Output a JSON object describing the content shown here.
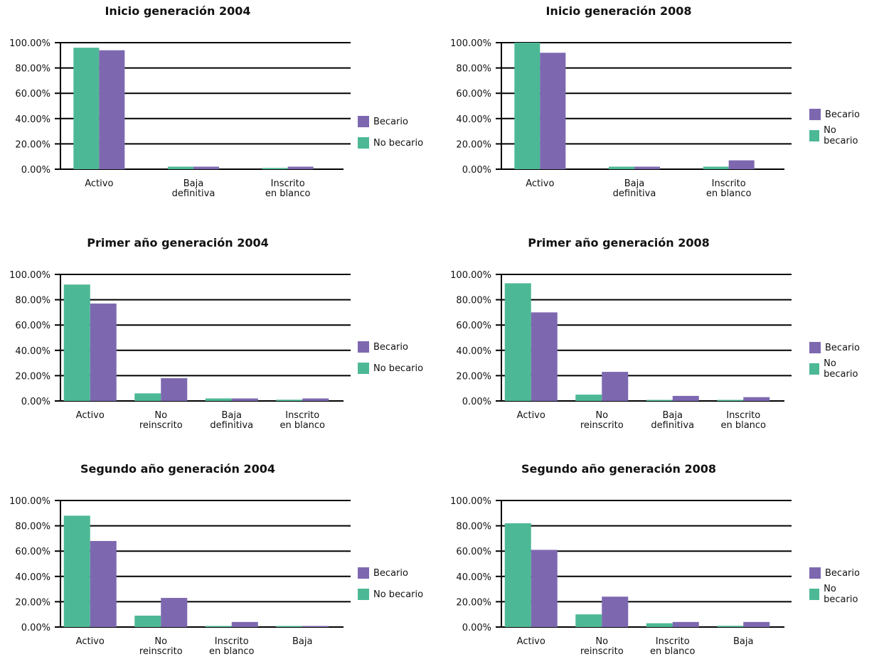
{
  "colors": {
    "becario": "#7d68b0",
    "no_becario": "#4db896"
  },
  "legend": {
    "becario": "Becario",
    "no_becario": "No becario"
  },
  "chart_data": [
    {
      "type": "bar",
      "title": "Inicio generación 2004",
      "ylim": [
        0,
        100
      ],
      "yticks": [
        "0.00%",
        "20.00%",
        "40.00%",
        "60.00%",
        "80.00%",
        "100.00%"
      ],
      "categories": [
        [
          "Activo"
        ],
        [
          "Baja",
          "definitiva"
        ],
        [
          "Inscrito",
          "en blanco"
        ]
      ],
      "series": [
        {
          "name": "No becario",
          "values": [
            96,
            2,
            1
          ]
        },
        {
          "name": "Becario",
          "values": [
            94,
            2,
            2
          ]
        }
      ]
    },
    {
      "type": "bar",
      "title": "Inicio generación 2008",
      "ylim": [
        0,
        100
      ],
      "yticks": [
        "0.00%",
        "20.00%",
        "40.00%",
        "60.00%",
        "80.00%",
        "100.00%"
      ],
      "categories": [
        [
          "Activo"
        ],
        [
          "Baja",
          "definitiva"
        ],
        [
          "Inscrito",
          "en blanco"
        ]
      ],
      "series": [
        {
          "name": "No becario",
          "values": [
            100,
            2,
            2
          ]
        },
        {
          "name": "Becario",
          "values": [
            92,
            2,
            7
          ]
        }
      ]
    },
    {
      "type": "bar",
      "title": "Primer año generación 2004",
      "ylim": [
        0,
        100
      ],
      "yticks": [
        "0.00%",
        "20.00%",
        "40.00%",
        "60.00%",
        "80.00%",
        "100.00%"
      ],
      "categories": [
        [
          "Activo"
        ],
        [
          "No",
          "reinscrito"
        ],
        [
          "Baja",
          "definitiva"
        ],
        [
          "Inscrito",
          "en blanco"
        ]
      ],
      "series": [
        {
          "name": "No becario",
          "values": [
            92,
            6,
            2,
            1
          ]
        },
        {
          "name": "Becario",
          "values": [
            77,
            18,
            2,
            2
          ]
        }
      ]
    },
    {
      "type": "bar",
      "title": "Primer año generación 2008",
      "ylim": [
        0,
        100
      ],
      "yticks": [
        "0.00%",
        "20.00%",
        "40.00%",
        "60.00%",
        "80.00%",
        "100.00%"
      ],
      "categories": [
        [
          "Activo"
        ],
        [
          "No",
          "reinscrito"
        ],
        [
          "Baja",
          "definitiva"
        ],
        [
          "Inscrito",
          "en blanco"
        ]
      ],
      "series": [
        {
          "name": "No becario",
          "values": [
            93,
            5,
            0.5,
            0.5
          ]
        },
        {
          "name": "Becario",
          "values": [
            70,
            23,
            4,
            3
          ]
        }
      ]
    },
    {
      "type": "bar",
      "title": "Segundo año generación 2004",
      "ylim": [
        0,
        100
      ],
      "yticks": [
        "0.00%",
        "20.00%",
        "40.00%",
        "60.00%",
        "80.00%",
        "100.00%"
      ],
      "categories": [
        [
          "Activo"
        ],
        [
          "No",
          "reinscrito"
        ],
        [
          "Inscrito",
          "en blanco"
        ],
        [
          "Baja"
        ]
      ],
      "series": [
        {
          "name": "No becario",
          "values": [
            88,
            9,
            0.5,
            0.5
          ]
        },
        {
          "name": "Becario",
          "values": [
            68,
            23,
            4,
            0.5
          ]
        }
      ]
    },
    {
      "type": "bar",
      "title": "Segundo año generación 2008",
      "ylim": [
        0,
        100
      ],
      "yticks": [
        "0.00%",
        "20.00%",
        "40.00%",
        "60.00%",
        "80.00%",
        "100.00%"
      ],
      "categories": [
        [
          "Activo"
        ],
        [
          "No",
          "reinscrito"
        ],
        [
          "Inscrito",
          "en blanco"
        ],
        [
          "Baja"
        ]
      ],
      "series": [
        {
          "name": "No becario",
          "values": [
            82,
            10,
            3,
            1
          ]
        },
        {
          "name": "Becario",
          "values": [
            61,
            24,
            4,
            4
          ]
        }
      ]
    }
  ]
}
